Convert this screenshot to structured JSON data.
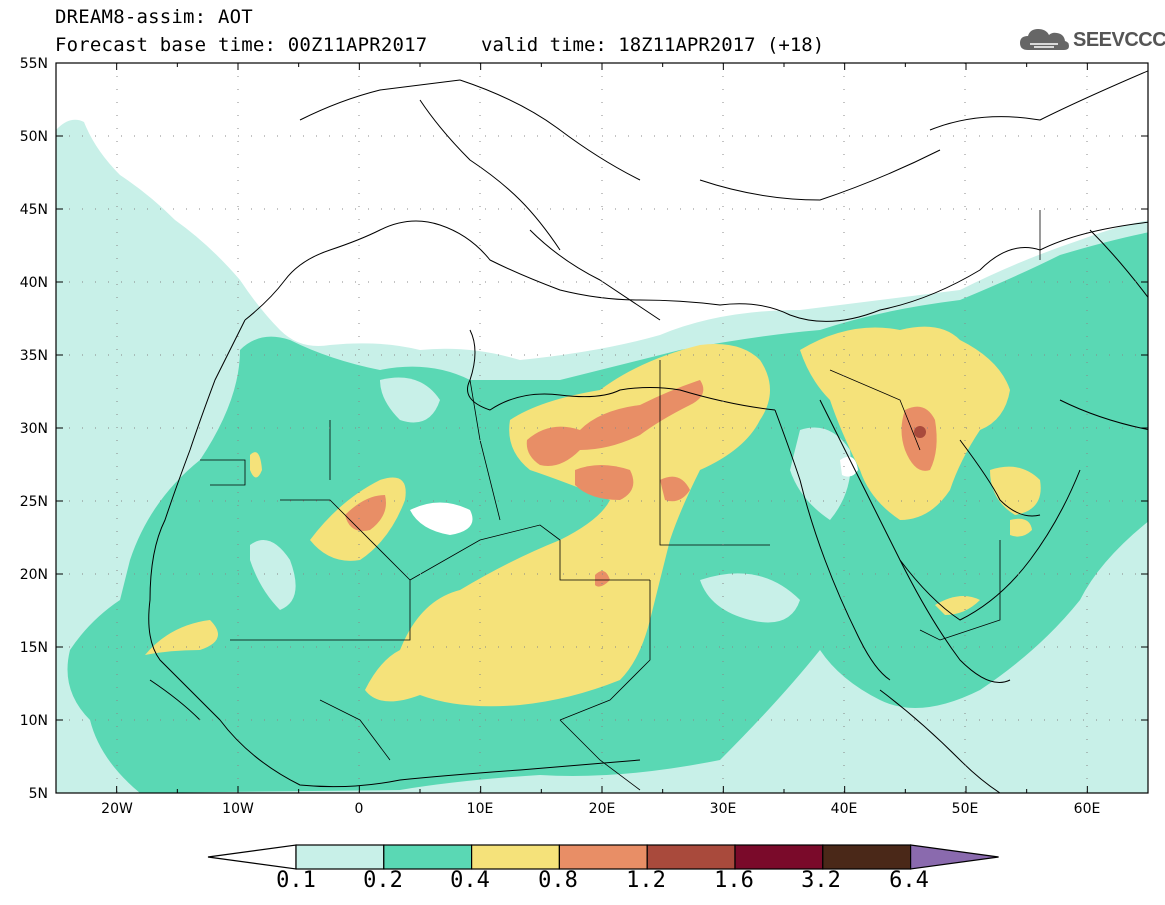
{
  "header": {
    "title": "DREAM8-assim: AOT",
    "base_time": "Forecast base time: 00Z11APR2017",
    "valid_time": "valid time: 18Z11APR2017 (+18)",
    "logo_text": "SEEVCCC"
  },
  "axes": {
    "lat_labels": [
      "55N",
      "50N",
      "45N",
      "40N",
      "35N",
      "30N",
      "25N",
      "20N",
      "15N",
      "10N",
      "5N"
    ],
    "lon_labels": [
      "20W",
      "10W",
      "0",
      "10E",
      "20E",
      "30E",
      "40E",
      "50E",
      "60E"
    ],
    "lon_range": [
      -25,
      65
    ],
    "lat_range": [
      5,
      55
    ],
    "grid": "dotted"
  },
  "colorbar": {
    "levels": [
      "0.1",
      "0.2",
      "0.4",
      "0.8",
      "1.2",
      "1.6",
      "3.2",
      "6.4"
    ],
    "colors": [
      "#ffffff",
      "#c8f0e8",
      "#5ad8b4",
      "#f5e27a",
      "#e88e66",
      "#a94a3c",
      "#7a0a2a",
      "#4a2818",
      "#8a6aae"
    ]
  }
}
